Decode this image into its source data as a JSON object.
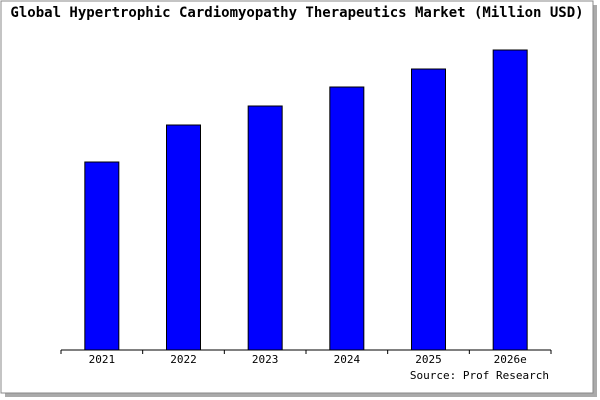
{
  "chart_data": {
    "type": "bar",
    "title": "Global Hypertrophic Cardiomyopathy Therapeutics Market (Million USD)",
    "categories": [
      "2021",
      "2022",
      "2023",
      "2024",
      "2025",
      "2026e"
    ],
    "values": [
      188,
      225,
      244,
      263,
      281,
      300
    ],
    "color": "#0000ff",
    "ylim": [
      0,
      300
    ],
    "source": "Source: Prof Research"
  }
}
